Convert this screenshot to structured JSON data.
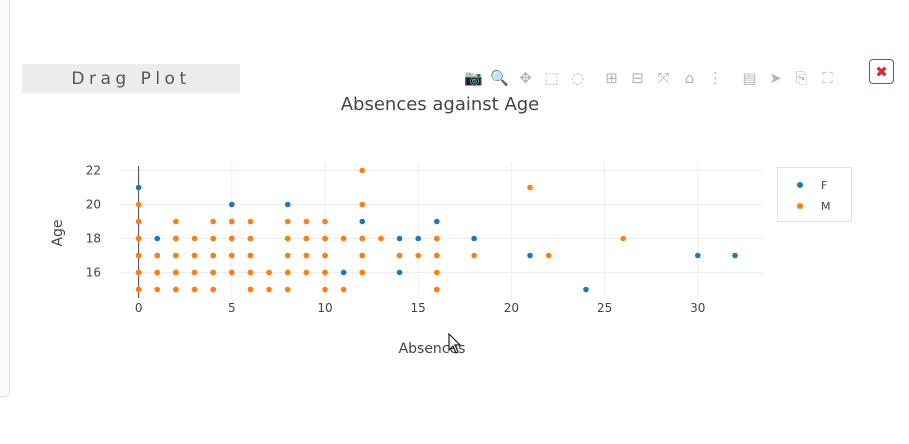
{
  "drag_label": "Drag Plot",
  "close_label": "✖",
  "modebar": [
    {
      "name": "camera-icon",
      "glyph": "📷"
    },
    {
      "name": "zoom-icon",
      "glyph": "🔍",
      "active": true
    },
    {
      "name": "pan-icon",
      "glyph": "✥"
    },
    {
      "name": "box-select-icon",
      "glyph": "⬚"
    },
    {
      "name": "lasso-select-icon",
      "glyph": "◌"
    },
    {
      "name": "zoom-in-icon",
      "glyph": "⊞"
    },
    {
      "name": "zoom-out-icon",
      "glyph": "⊟"
    },
    {
      "name": "autoscale-icon",
      "glyph": "⤧"
    },
    {
      "name": "reset-axes-icon",
      "glyph": "⌂"
    },
    {
      "name": "spike-lines-icon",
      "glyph": "⋮"
    },
    {
      "name": "hover-closest-icon",
      "glyph": "▤"
    },
    {
      "name": "hover-compare-icon",
      "glyph": "➤"
    },
    {
      "name": "edit-in-chart-studio-icon",
      "glyph": "⎘"
    },
    {
      "name": "fullscreen-icon",
      "glyph": "⛶"
    }
  ],
  "chart_data": {
    "type": "scatter",
    "title": "Absences against Age",
    "xlabel": "Absences",
    "ylabel": "Age",
    "xlim": [
      -1,
      33.5
    ],
    "ylim": [
      14.5,
      22.5
    ],
    "xticks": [
      0,
      5,
      10,
      15,
      20,
      25,
      30
    ],
    "yticks": [
      16,
      18,
      20,
      22
    ],
    "grid": true,
    "legend_position": "top-right",
    "series": [
      {
        "name": "F",
        "color": "#1f77b4",
        "points": [
          [
            0,
            15
          ],
          [
            0,
            16
          ],
          [
            0,
            17
          ],
          [
            0,
            18
          ],
          [
            0,
            19
          ],
          [
            0,
            21
          ],
          [
            1,
            16
          ],
          [
            1,
            17
          ],
          [
            1,
            18
          ],
          [
            2,
            15
          ],
          [
            2,
            16
          ],
          [
            2,
            17
          ],
          [
            2,
            18
          ],
          [
            3,
            15
          ],
          [
            3,
            16
          ],
          [
            3,
            17
          ],
          [
            4,
            15
          ],
          [
            4,
            16
          ],
          [
            4,
            17
          ],
          [
            4,
            18
          ],
          [
            5,
            16
          ],
          [
            5,
            17
          ],
          [
            5,
            18
          ],
          [
            5,
            19
          ],
          [
            5,
            20
          ],
          [
            6,
            15
          ],
          [
            6,
            16
          ],
          [
            6,
            17
          ],
          [
            6,
            18
          ],
          [
            8,
            16
          ],
          [
            8,
            17
          ],
          [
            8,
            18
          ],
          [
            8,
            20
          ],
          [
            9,
            17
          ],
          [
            9,
            18
          ],
          [
            10,
            16
          ],
          [
            10,
            17
          ],
          [
            10,
            18
          ],
          [
            11,
            16
          ],
          [
            12,
            16
          ],
          [
            12,
            17
          ],
          [
            12,
            18
          ],
          [
            12,
            19
          ],
          [
            14,
            16
          ],
          [
            14,
            17
          ],
          [
            14,
            18
          ],
          [
            15,
            18
          ],
          [
            16,
            15
          ],
          [
            16,
            17
          ],
          [
            16,
            18
          ],
          [
            16,
            19
          ],
          [
            18,
            18
          ],
          [
            21,
            17
          ],
          [
            24,
            15
          ],
          [
            30,
            17
          ],
          [
            32,
            17
          ]
        ]
      },
      {
        "name": "M",
        "color": "#ff7f0e",
        "points": [
          [
            0,
            15
          ],
          [
            0,
            16
          ],
          [
            0,
            17
          ],
          [
            0,
            18
          ],
          [
            0,
            19
          ],
          [
            0,
            20
          ],
          [
            1,
            15
          ],
          [
            1,
            16
          ],
          [
            1,
            17
          ],
          [
            2,
            15
          ],
          [
            2,
            16
          ],
          [
            2,
            17
          ],
          [
            2,
            18
          ],
          [
            2,
            19
          ],
          [
            3,
            15
          ],
          [
            3,
            16
          ],
          [
            3,
            17
          ],
          [
            3,
            18
          ],
          [
            4,
            15
          ],
          [
            4,
            16
          ],
          [
            4,
            17
          ],
          [
            4,
            18
          ],
          [
            4,
            19
          ],
          [
            5,
            16
          ],
          [
            5,
            17
          ],
          [
            5,
            18
          ],
          [
            5,
            19
          ],
          [
            6,
            15
          ],
          [
            6,
            16
          ],
          [
            6,
            17
          ],
          [
            6,
            18
          ],
          [
            6,
            19
          ],
          [
            7,
            15
          ],
          [
            7,
            16
          ],
          [
            8,
            15
          ],
          [
            8,
            16
          ],
          [
            8,
            17
          ],
          [
            8,
            18
          ],
          [
            8,
            19
          ],
          [
            9,
            16
          ],
          [
            9,
            17
          ],
          [
            9,
            18
          ],
          [
            9,
            19
          ],
          [
            10,
            15
          ],
          [
            10,
            16
          ],
          [
            10,
            17
          ],
          [
            10,
            18
          ],
          [
            10,
            19
          ],
          [
            11,
            15
          ],
          [
            11,
            18
          ],
          [
            12,
            16
          ],
          [
            12,
            17
          ],
          [
            12,
            18
          ],
          [
            12,
            20
          ],
          [
            12,
            22
          ],
          [
            13,
            18
          ],
          [
            14,
            17
          ],
          [
            15,
            17
          ],
          [
            16,
            15
          ],
          [
            16,
            16
          ],
          [
            16,
            17
          ],
          [
            16,
            18
          ],
          [
            18,
            17
          ],
          [
            21,
            21
          ],
          [
            22,
            17
          ],
          [
            26,
            18
          ]
        ]
      }
    ]
  }
}
